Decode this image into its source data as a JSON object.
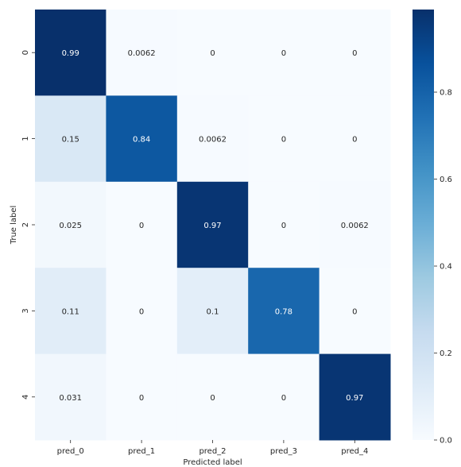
{
  "chart_data": {
    "type": "heatmap",
    "title": "",
    "xlabel": "Predicted label",
    "ylabel": "True label",
    "x_categories": [
      "pred_0",
      "pred_1",
      "pred_2",
      "pred_3",
      "pred_4"
    ],
    "y_categories": [
      "0",
      "1",
      "2",
      "3",
      "4"
    ],
    "values": [
      [
        0.99,
        0.0062,
        0,
        0,
        0
      ],
      [
        0.15,
        0.84,
        0.0062,
        0,
        0
      ],
      [
        0.025,
        0,
        0.97,
        0,
        0.0062
      ],
      [
        0.11,
        0,
        0.1,
        0.78,
        0
      ],
      [
        0.031,
        0,
        0,
        0,
        0.97
      ]
    ],
    "value_labels": [
      [
        "0.99",
        "0.0062",
        "0",
        "0",
        "0"
      ],
      [
        "0.15",
        "0.84",
        "0.0062",
        "0",
        "0"
      ],
      [
        "0.025",
        "0",
        "0.97",
        "0",
        "0.0062"
      ],
      [
        "0.11",
        "0",
        "0.1",
        "0.78",
        "0"
      ],
      [
        "0.031",
        "0",
        "0",
        "0",
        "0.97"
      ]
    ],
    "colorbar": {
      "range": [
        0,
        0.99
      ],
      "ticks": [
        0.0,
        0.2,
        0.4,
        0.6,
        0.8
      ],
      "tick_labels": [
        "0.0",
        "0.2",
        "0.4",
        "0.6",
        "0.8"
      ]
    },
    "colormap": "Blues",
    "colors": {
      "low": "#f7fbff",
      "high": "#08306b"
    }
  }
}
